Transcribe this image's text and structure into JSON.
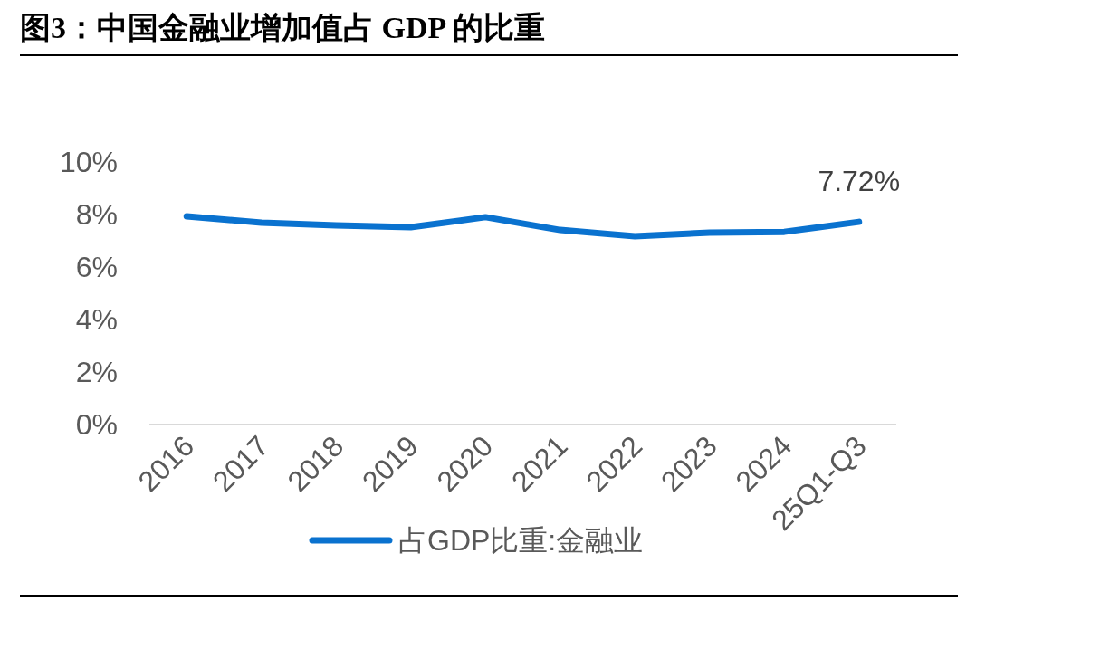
{
  "chart_data": {
    "type": "line",
    "title": "图3：中国金融业增加值占 GDP 的比重",
    "categories": [
      "2016",
      "2017",
      "2018",
      "2019",
      "2020",
      "2021",
      "2022",
      "2023",
      "2024",
      "25Q1-Q3"
    ],
    "series": [
      {
        "name": "占GDP比重:金融业",
        "color": "#0a72cf",
        "values": [
          7.93,
          7.69,
          7.59,
          7.52,
          7.9,
          7.41,
          7.17,
          7.31,
          7.34,
          7.72
        ],
        "value_labels": [
          null,
          null,
          null,
          null,
          null,
          null,
          null,
          null,
          null,
          "7.72%"
        ]
      }
    ],
    "ylim": [
      0,
      10
    ],
    "yticks": [
      {
        "value": 0,
        "label": "0%"
      },
      {
        "value": 2,
        "label": "2%"
      },
      {
        "value": 4,
        "label": "4%"
      },
      {
        "value": 6,
        "label": "6%"
      },
      {
        "value": 8,
        "label": "8%"
      },
      {
        "value": 10,
        "label": "10%"
      }
    ],
    "grid": false,
    "legend": "bottom",
    "line_style": "solid"
  }
}
